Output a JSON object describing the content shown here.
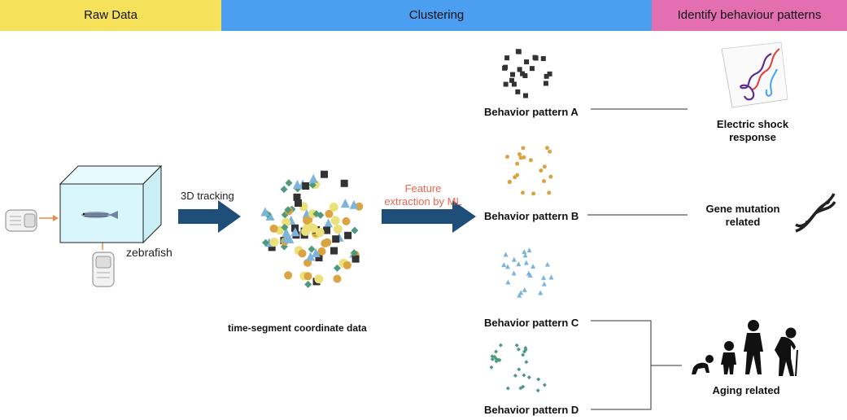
{
  "header": {
    "raw_data": "Raw Data",
    "clustering": "Clustering",
    "identify": "Identify behaviour patterns"
  },
  "colors": {
    "raw_data_bg": "#f5e15a",
    "clustering_bg": "#4b9ef0",
    "identify_bg": "#e36fb0",
    "arrow": "#1f4e79",
    "feature_text": "#e8674f",
    "pattern_a": "#333333",
    "pattern_b": "#d9a441",
    "pattern_c": "#7db4dc",
    "pattern_d": "#4e9a7a",
    "mixed_yellow": "#ece07a",
    "tank": "#d8f6fb",
    "camera_arrow": "#ee8a4b"
  },
  "raw": {
    "zebrafish": "zebrafish"
  },
  "steps": {
    "tracking": "3D tracking",
    "feature_line1": "Feature",
    "feature_line2": "extraction by ML",
    "coordinate_caption": "time-segment coordinate data"
  },
  "patterns": {
    "a": "Behavior pattern A",
    "b": "Behavior pattern B",
    "c": "Behavior pattern C",
    "d": "Behavior pattern D"
  },
  "outcomes": {
    "electric_line1": "Electric shock",
    "electric_line2": "response",
    "gene_line1": "Gene mutation",
    "gene_line2": "related",
    "aging": "Aging related"
  },
  "icons": [
    "camera-icon",
    "zebrafish-icon",
    "dna-icon",
    "human-evolution-icon",
    "3d-trajectory-icon"
  ]
}
